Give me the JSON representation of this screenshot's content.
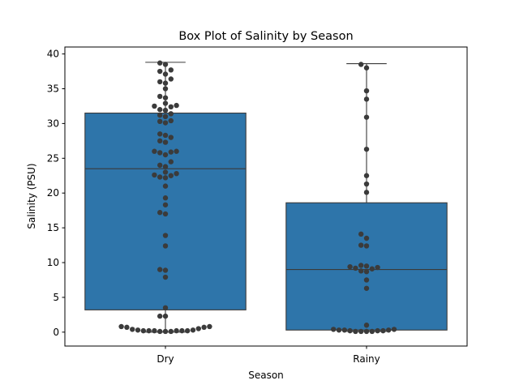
{
  "chart_data": {
    "type": "box",
    "title": "Box Plot of Salinity by Season",
    "xlabel": "Season",
    "ylabel": "Salinity (PSU)",
    "ylim": [
      -2,
      41
    ],
    "yticks": [
      0,
      5,
      10,
      15,
      20,
      25,
      30,
      35,
      40
    ],
    "grid": false,
    "categories": [
      "Dry",
      "Rainy"
    ],
    "box_color": "#2e75aa",
    "point_color": "#3b3b3b",
    "line_color": "#3a3a3a",
    "boxes": [
      {
        "category": "Dry",
        "whisker_low": 0.0,
        "q1": 3.2,
        "median": 23.5,
        "q3": 31.5,
        "whisker_high": 38.8
      },
      {
        "category": "Rainy",
        "whisker_low": 0.1,
        "q1": 0.3,
        "median": 9.0,
        "q3": 18.6,
        "whisker_high": 38.6
      }
    ],
    "points": [
      {
        "category": "Dry",
        "values": [
          38.7,
          38.5,
          37.7,
          37.5,
          37.1,
          36.4,
          36.0,
          35.8,
          35.0,
          33.9,
          33.7,
          32.9,
          32.6,
          32.5,
          32.4,
          32.0,
          31.9,
          31.4,
          31.2,
          31.0,
          30.4,
          30.3,
          30.1,
          28.5,
          28.3,
          28.0,
          27.5,
          27.3,
          26.0,
          26.0,
          25.9,
          25.8,
          25.5,
          24.5,
          24.0,
          23.8,
          23.0,
          22.8,
          22.6,
          22.5,
          22.3,
          22.2,
          21.0,
          19.3,
          18.3,
          17.2,
          17.0,
          13.9,
          12.4,
          9.0,
          8.9,
          7.9,
          3.5,
          2.3,
          2.3,
          0.8,
          0.8,
          0.7,
          0.7,
          0.5,
          0.4,
          0.3,
          0.3,
          0.2,
          0.2,
          0.2,
          0.2,
          0.2,
          0.2,
          0.1,
          0.1,
          0.1
        ]
      },
      {
        "category": "Rainy",
        "values": [
          38.5,
          38.0,
          34.7,
          33.5,
          30.9,
          26.3,
          22.5,
          21.3,
          20.1,
          14.1,
          13.5,
          12.5,
          12.4,
          9.6,
          9.5,
          9.4,
          9.3,
          9.2,
          9.1,
          8.8,
          8.7,
          7.5,
          6.3,
          1.0,
          0.4,
          0.4,
          0.3,
          0.3,
          0.3,
          0.2,
          0.2,
          0.2,
          0.1,
          0.1,
          0.1,
          0.1
        ]
      }
    ]
  }
}
